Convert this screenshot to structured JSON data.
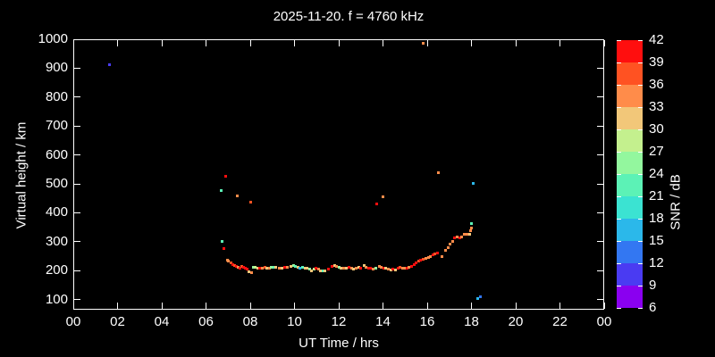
{
  "title": "2025-11-20. f = 4760 kHz",
  "colors": {
    "background": "#000000",
    "foreground": "#ffffff"
  },
  "chart_data": {
    "type": "scatter",
    "title": "2025-11-20. f = 4760 kHz",
    "xlabel": "UT Time / hrs",
    "ylabel": "Virtual height / km",
    "xlim": [
      0,
      24
    ],
    "ylim": [
      65,
      1000
    ],
    "grid": "off",
    "x_ticks": {
      "values": [
        0,
        2,
        4,
        6,
        8,
        10,
        12,
        14,
        16,
        18,
        20,
        22,
        24
      ],
      "labels": [
        "00",
        "02",
        "04",
        "06",
        "08",
        "10",
        "12",
        "14",
        "16",
        "18",
        "20",
        "22",
        "00"
      ]
    },
    "y_ticks": {
      "values": [
        100,
        200,
        300,
        400,
        500,
        600,
        700,
        800,
        900,
        1000
      ],
      "labels": [
        "100",
        "200",
        "300",
        "400",
        "500",
        "600",
        "700",
        "800",
        "900",
        "1000"
      ]
    },
    "colorbar": {
      "label": "SNR / dB",
      "min": 6,
      "max": 42,
      "step": 3,
      "tick_labels": [
        "42",
        "39",
        "36",
        "33",
        "30",
        "27",
        "24",
        "21",
        "18",
        "15",
        "12",
        "9",
        "6"
      ],
      "palette": [
        "#8A00F0",
        "#4A3BF2",
        "#3377F2",
        "#2BB8EA",
        "#3BE3D2",
        "#5CF2B6",
        "#93F79E",
        "#C4F08E",
        "#F2C779",
        "#FF8C4A",
        "#FF5222",
        "#FF0E0E"
      ]
    },
    "points_format": [
      "ut_hour",
      "virtual_height_km",
      "snr_db"
    ],
    "points": [
      [
        1.65,
        912,
        10
      ],
      [
        15.8,
        985,
        34
      ],
      [
        6.7,
        478,
        22
      ],
      [
        6.9,
        527,
        40
      ],
      [
        7.43,
        459,
        34
      ],
      [
        8.03,
        437,
        37
      ],
      [
        13.7,
        430,
        40
      ],
      [
        14.0,
        456,
        34
      ],
      [
        16.5,
        539,
        34
      ],
      [
        18.08,
        502,
        16
      ],
      [
        18.0,
        363,
        22
      ],
      [
        18.3,
        103,
        16
      ],
      [
        18.42,
        110,
        13
      ],
      [
        6.74,
        302,
        22
      ],
      [
        6.82,
        276,
        40
      ],
      [
        6.95,
        237,
        34
      ],
      [
        7.03,
        232,
        34
      ],
      [
        7.12,
        227,
        37
      ],
      [
        7.2,
        222,
        40
      ],
      [
        7.3,
        218,
        37
      ],
      [
        7.38,
        215,
        40
      ],
      [
        7.45,
        213,
        34
      ],
      [
        7.55,
        209,
        40
      ],
      [
        7.62,
        214,
        37
      ],
      [
        7.7,
        211,
        40
      ],
      [
        7.78,
        208,
        40
      ],
      [
        7.86,
        206,
        40
      ],
      [
        7.95,
        196,
        31
      ],
      [
        8.05,
        194,
        34
      ],
      [
        8.14,
        211,
        25
      ],
      [
        8.24,
        213,
        28
      ],
      [
        8.33,
        209,
        31
      ],
      [
        8.44,
        207,
        40
      ],
      [
        8.55,
        209,
        34
      ],
      [
        8.66,
        211,
        37
      ],
      [
        8.75,
        207,
        31
      ],
      [
        8.85,
        209,
        34
      ],
      [
        8.96,
        211,
        25
      ],
      [
        9.07,
        213,
        22
      ],
      [
        9.17,
        211,
        31
      ],
      [
        9.3,
        209,
        34
      ],
      [
        9.44,
        207,
        31
      ],
      [
        9.55,
        211,
        40
      ],
      [
        9.67,
        213,
        34
      ],
      [
        9.85,
        214,
        31
      ],
      [
        9.95,
        217,
        25
      ],
      [
        10.06,
        214,
        22
      ],
      [
        10.16,
        211,
        31
      ],
      [
        10.26,
        209,
        16
      ],
      [
        10.37,
        211,
        22
      ],
      [
        10.47,
        209,
        31
      ],
      [
        10.57,
        207,
        31
      ],
      [
        10.67,
        204,
        25
      ],
      [
        10.78,
        200,
        31
      ],
      [
        10.88,
        204,
        28
      ],
      [
        10.98,
        207,
        40
      ],
      [
        11.08,
        204,
        34
      ],
      [
        11.19,
        200,
        31
      ],
      [
        11.29,
        198,
        22
      ],
      [
        11.39,
        200,
        31
      ],
      [
        11.54,
        204,
        40
      ],
      [
        11.7,
        214,
        40
      ],
      [
        11.8,
        217,
        31
      ],
      [
        11.91,
        214,
        34
      ],
      [
        12.0,
        211,
        25
      ],
      [
        12.11,
        209,
        31
      ],
      [
        12.24,
        207,
        34
      ],
      [
        12.36,
        209,
        31
      ],
      [
        12.47,
        211,
        40
      ],
      [
        12.59,
        207,
        34
      ],
      [
        12.68,
        204,
        31
      ],
      [
        12.8,
        209,
        34
      ],
      [
        12.9,
        211,
        31
      ],
      [
        13.0,
        207,
        40
      ],
      [
        13.14,
        218,
        31
      ],
      [
        13.24,
        213,
        34
      ],
      [
        13.34,
        210,
        40
      ],
      [
        13.45,
        208,
        40
      ],
      [
        13.55,
        206,
        34
      ],
      [
        13.68,
        208,
        25
      ],
      [
        13.82,
        216,
        34
      ],
      [
        13.92,
        213,
        34
      ],
      [
        14.03,
        210,
        40
      ],
      [
        14.14,
        208,
        31
      ],
      [
        14.24,
        206,
        34
      ],
      [
        14.35,
        203,
        31
      ],
      [
        14.44,
        206,
        40
      ],
      [
        14.56,
        203,
        31
      ],
      [
        14.69,
        210,
        40
      ],
      [
        14.78,
        213,
        37
      ],
      [
        14.88,
        210,
        34
      ],
      [
        14.99,
        208,
        34
      ],
      [
        15.1,
        210,
        40
      ],
      [
        15.19,
        213,
        34
      ],
      [
        15.29,
        216,
        40
      ],
      [
        15.4,
        220,
        40
      ],
      [
        15.51,
        228,
        40
      ],
      [
        15.6,
        233,
        37
      ],
      [
        15.7,
        236,
        40
      ],
      [
        15.8,
        240,
        37
      ],
      [
        15.95,
        243,
        34
      ],
      [
        16.05,
        246,
        34
      ],
      [
        16.16,
        249,
        34
      ],
      [
        16.25,
        254,
        40
      ],
      [
        16.35,
        259,
        37
      ],
      [
        16.45,
        262,
        40
      ],
      [
        16.66,
        249,
        34
      ],
      [
        16.84,
        269,
        34
      ],
      [
        16.95,
        281,
        34
      ],
      [
        17.05,
        291,
        34
      ],
      [
        17.15,
        302,
        34
      ],
      [
        17.25,
        313,
        40
      ],
      [
        17.35,
        317,
        34
      ],
      [
        17.46,
        313,
        40
      ],
      [
        17.56,
        317,
        34
      ],
      [
        17.66,
        325,
        34
      ],
      [
        17.8,
        327,
        34
      ],
      [
        17.9,
        325,
        31
      ],
      [
        17.95,
        337,
        34
      ],
      [
        18.0,
        348,
        34
      ]
    ]
  }
}
